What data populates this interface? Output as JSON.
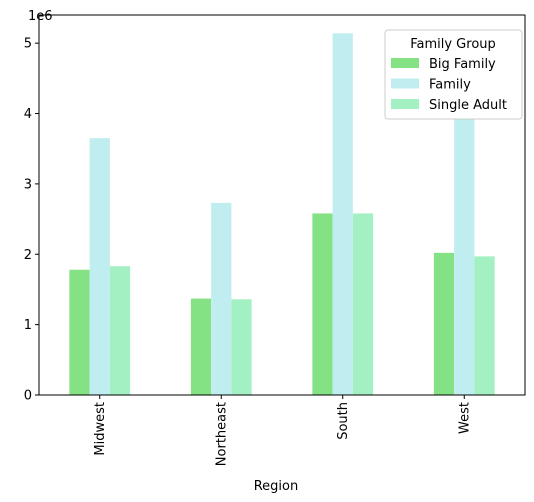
{
  "chart_data": {
    "type": "bar",
    "xlabel": "Region",
    "ylabel": "",
    "offset_label": "1e6",
    "categories": [
      "Midwest",
      "Northeast",
      "South",
      "West"
    ],
    "ylim": [
      0,
      5.4
    ],
    "yticks": [
      0,
      1,
      2,
      3,
      4,
      5
    ],
    "legend_title": "Family Group",
    "legend_position": "top-right",
    "grid": false,
    "series": [
      {
        "name": "Big Family",
        "color": "#84e184",
        "values": [
          1.78,
          1.37,
          2.58,
          2.02
        ]
      },
      {
        "name": "Family",
        "color": "#c0eef0",
        "values": [
          3.65,
          2.73,
          5.14,
          3.93
        ]
      },
      {
        "name": "Single Adult",
        "color": "#a3f0c3",
        "values": [
          1.83,
          1.36,
          2.58,
          1.97
        ]
      }
    ]
  }
}
